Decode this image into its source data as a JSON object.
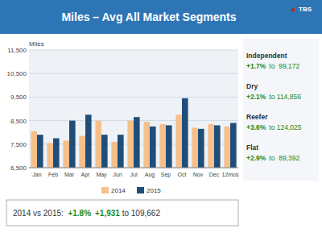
{
  "chart_data": {
    "type": "bar",
    "title": "Miles – Avg All Market Segments",
    "ylabel": "Miles",
    "categories": [
      "Jan",
      "Feb",
      "Mar",
      "Apr",
      "May",
      "Jun",
      "Jul",
      "Aug",
      "Sep",
      "Oct",
      "Nov",
      "Dec",
      "12mos"
    ],
    "series": [
      {
        "name": "2014",
        "color": "#F5C08A",
        "values": [
          8050,
          7550,
          7650,
          7850,
          8500,
          7600,
          8500,
          8450,
          8350,
          8750,
          8200,
          8350,
          8250
        ]
      },
      {
        "name": "2015",
        "color": "#1F4E79",
        "values": [
          7900,
          7750,
          8500,
          8750,
          7900,
          7900,
          8650,
          8250,
          8300,
          9450,
          8150,
          8300,
          8400
        ]
      }
    ],
    "ylim": [
      6500,
      11500
    ],
    "yticks": [
      {
        "value": 6500,
        "label": "6,500"
      },
      {
        "value": 7500,
        "label": "7,500"
      },
      {
        "value": 8500,
        "label": "8,500"
      },
      {
        "value": 9500,
        "label": "9,500"
      },
      {
        "value": 10500,
        "label": "10,500"
      },
      {
        "value": 11500,
        "label": "11,500"
      }
    ],
    "grid": true,
    "legend": "bottom",
    "annotations": [
      [
        "▲",
        "TBS"
      ],
      [
        "Independent",
        "+1.7%",
        "to  99,172"
      ],
      [
        "Dry",
        "+2.1%",
        "to 114,856"
      ],
      [
        "Reefer",
        "+3.6%",
        "to 124,025"
      ],
      [
        "Flat",
        "+2.9%",
        "to  89,392"
      ],
      [
        "2014 vs 2015:  ",
        "+1.8%",
        "+1,931",
        " to 109,662"
      ]
    ]
  }
}
